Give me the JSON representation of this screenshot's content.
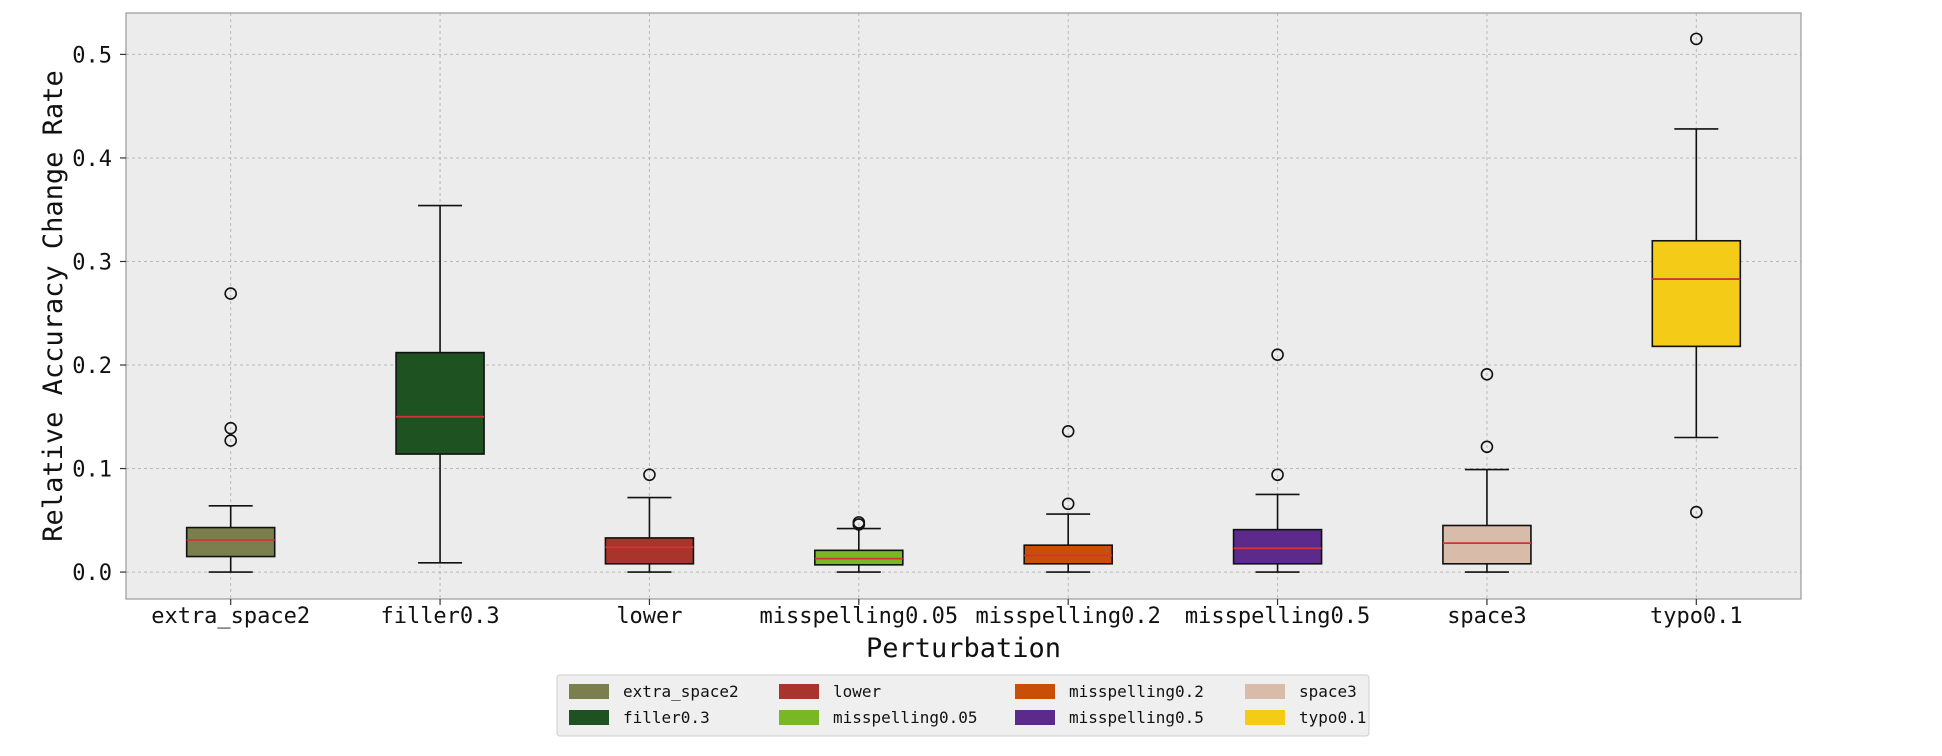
{
  "chart_data": {
    "type": "box",
    "xlabel": "Perturbation",
    "ylabel": "Relative Accuracy Change Rate",
    "ylim": [
      -0.026,
      0.54
    ],
    "yticks": [
      0.0,
      0.1,
      0.2,
      0.3,
      0.4,
      0.5
    ],
    "ytick_labels": [
      "0.0",
      "0.1",
      "0.2",
      "0.3",
      "0.4",
      "0.5"
    ],
    "grid": true,
    "legend_position": "bottom-center",
    "legend_columns": 4,
    "median_color": "#d0343a",
    "series": [
      {
        "category": "extra_space2",
        "color": "#7b7f4e",
        "whisker_low": 0.0,
        "q1": 0.015,
        "median": 0.031,
        "q3": 0.043,
        "whisker_high": 0.064,
        "outliers": [
          0.127,
          0.139,
          0.269
        ]
      },
      {
        "category": "filler0.3",
        "color": "#1f5221",
        "whisker_low": 0.009,
        "q1": 0.114,
        "median": 0.15,
        "q3": 0.212,
        "whisker_high": 0.354,
        "outliers": []
      },
      {
        "category": "lower",
        "color": "#a9342b",
        "whisker_low": 0.0,
        "q1": 0.008,
        "median": 0.024,
        "q3": 0.033,
        "whisker_high": 0.072,
        "outliers": [
          0.094
        ]
      },
      {
        "category": "misspelling0.05",
        "color": "#79b824",
        "whisker_low": 0.0,
        "q1": 0.007,
        "median": 0.013,
        "q3": 0.021,
        "whisker_high": 0.042,
        "outliers": [
          0.046,
          0.048
        ]
      },
      {
        "category": "misspelling0.2",
        "color": "#c94e06",
        "whisker_low": 0.0,
        "q1": 0.008,
        "median": 0.016,
        "q3": 0.026,
        "whisker_high": 0.056,
        "outliers": [
          0.066,
          0.136
        ]
      },
      {
        "category": "misspelling0.5",
        "color": "#5b2a8a",
        "whisker_low": 0.0,
        "q1": 0.008,
        "median": 0.023,
        "q3": 0.041,
        "whisker_high": 0.075,
        "outliers": [
          0.094,
          0.21
        ]
      },
      {
        "category": "space3",
        "color": "#d8bba8",
        "whisker_low": 0.0,
        "q1": 0.008,
        "median": 0.028,
        "q3": 0.045,
        "whisker_high": 0.099,
        "outliers": [
          0.121,
          0.191
        ]
      },
      {
        "category": "typo0.1",
        "color": "#f4cb17",
        "whisker_low": 0.13,
        "q1": 0.218,
        "median": 0.283,
        "q3": 0.32,
        "whisker_high": 0.428,
        "outliers": [
          0.058,
          0.515
        ]
      }
    ],
    "legend": [
      "extra_space2",
      "filler0.3",
      "lower",
      "misspelling0.05",
      "misspelling0.2",
      "misspelling0.5",
      "space3",
      "typo0.1"
    ]
  }
}
